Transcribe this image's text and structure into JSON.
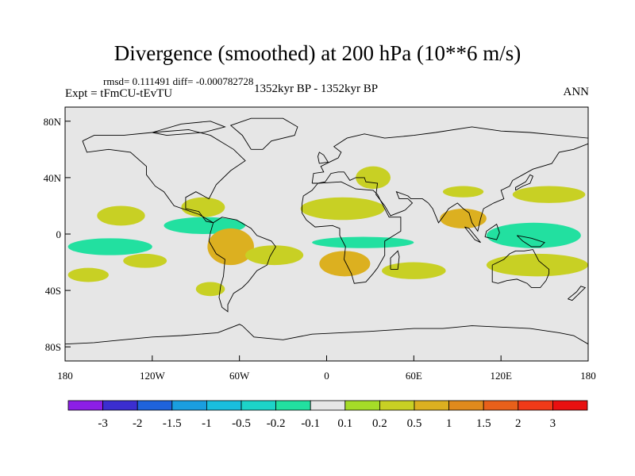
{
  "title": "Divergence (smoothed) at 200 hPa (10**6 m/s)",
  "stats": "rmsd= 0.111491 diff= -0.000782728",
  "experiment": "Expt = tFmCU-tEvTU",
  "period": "1352kyr BP - 1352kyr BP",
  "season": "ANN",
  "chart_data": {
    "type": "heatmap",
    "projection": "cylindrical-equidistant",
    "title": "Divergence (smoothed) at 200 hPa (10**6 m/s)",
    "variable": "Divergence (smoothed) at 200 hPa",
    "units": "10**6 m/s",
    "lon_range": [
      -180,
      180
    ],
    "lat_range": [
      -90,
      90
    ],
    "x_ticks": [
      {
        "value": -180,
        "label": "180"
      },
      {
        "value": -120,
        "label": "120W"
      },
      {
        "value": -60,
        "label": "60W"
      },
      {
        "value": 0,
        "label": "0"
      },
      {
        "value": 60,
        "label": "60E"
      },
      {
        "value": 120,
        "label": "120E"
      },
      {
        "value": 180,
        "label": "180"
      }
    ],
    "y_ticks": [
      {
        "value": 80,
        "label": "80N"
      },
      {
        "value": 40,
        "label": "40N"
      },
      {
        "value": 0,
        "label": "0"
      },
      {
        "value": -40,
        "label": "40S"
      },
      {
        "value": -80,
        "label": "80S"
      }
    ],
    "colorbar": {
      "labels": [
        "-3",
        "-2",
        "-1.5",
        "-1",
        "-0.5",
        "-0.2",
        "-0.1",
        "0.1",
        "0.2",
        "0.5",
        "1",
        "1.5",
        "2",
        "3"
      ],
      "colors": [
        "#8c1fe6",
        "#3b2ed0",
        "#1f63dc",
        "#1a9ee0",
        "#19bede",
        "#1dd3c8",
        "#22e0a0",
        "#e6e6e6",
        "#a5dc28",
        "#c8d024",
        "#dcb020",
        "#e08a1c",
        "#e8601a",
        "#f03a18",
        "#e81010"
      ]
    },
    "anomaly_regions": [
      {
        "lon": [
          -158,
          -125
        ],
        "lat": [
          20,
          6
        ],
        "value": 0.2
      },
      {
        "lon": [
          -178,
          -120
        ],
        "lat": [
          -3,
          -15
        ],
        "value": -0.2
      },
      {
        "lon": [
          -178,
          -150
        ],
        "lat": [
          -24,
          -34
        ],
        "value": 0.2
      },
      {
        "lon": [
          -140,
          -110
        ],
        "lat": [
          -14,
          -24
        ],
        "value": 0.2
      },
      {
        "lon": [
          -112,
          -56
        ],
        "lat": [
          12,
          0
        ],
        "value": -0.2
      },
      {
        "lon": [
          -100,
          -70
        ],
        "lat": [
          26,
          12
        ],
        "value": 0.2
      },
      {
        "lon": [
          -82,
          -50
        ],
        "lat": [
          4,
          -22
        ],
        "value": 0.5
      },
      {
        "lon": [
          -56,
          -16
        ],
        "lat": [
          -8,
          -22
        ],
        "value": 0.2
      },
      {
        "lon": [
          -90,
          -70
        ],
        "lat": [
          -34,
          -44
        ],
        "value": 0.2
      },
      {
        "lon": [
          -18,
          40
        ],
        "lat": [
          26,
          10
        ],
        "value": 0.2
      },
      {
        "lon": [
          20,
          44
        ],
        "lat": [
          48,
          32
        ],
        "value": 0.2
      },
      {
        "lon": [
          -10,
          60
        ],
        "lat": [
          -2,
          -10
        ],
        "value": -0.2
      },
      {
        "lon": [
          -5,
          30
        ],
        "lat": [
          -12,
          -30
        ],
        "value": 0.5
      },
      {
        "lon": [
          80,
          108
        ],
        "lat": [
          34,
          26
        ],
        "value": 0.2
      },
      {
        "lon": [
          78,
          110
        ],
        "lat": [
          18,
          4
        ],
        "value": 0.5
      },
      {
        "lon": [
          110,
          175
        ],
        "lat": [
          8,
          -10
        ],
        "value": -0.2
      },
      {
        "lon": [
          110,
          180
        ],
        "lat": [
          -14,
          -30
        ],
        "value": 0.2
      },
      {
        "lon": [
          128,
          178
        ],
        "lat": [
          34,
          22
        ],
        "value": 0.2
      },
      {
        "lon": [
          38,
          82
        ],
        "lat": [
          -20,
          -32
        ],
        "value": 0.2
      }
    ]
  }
}
